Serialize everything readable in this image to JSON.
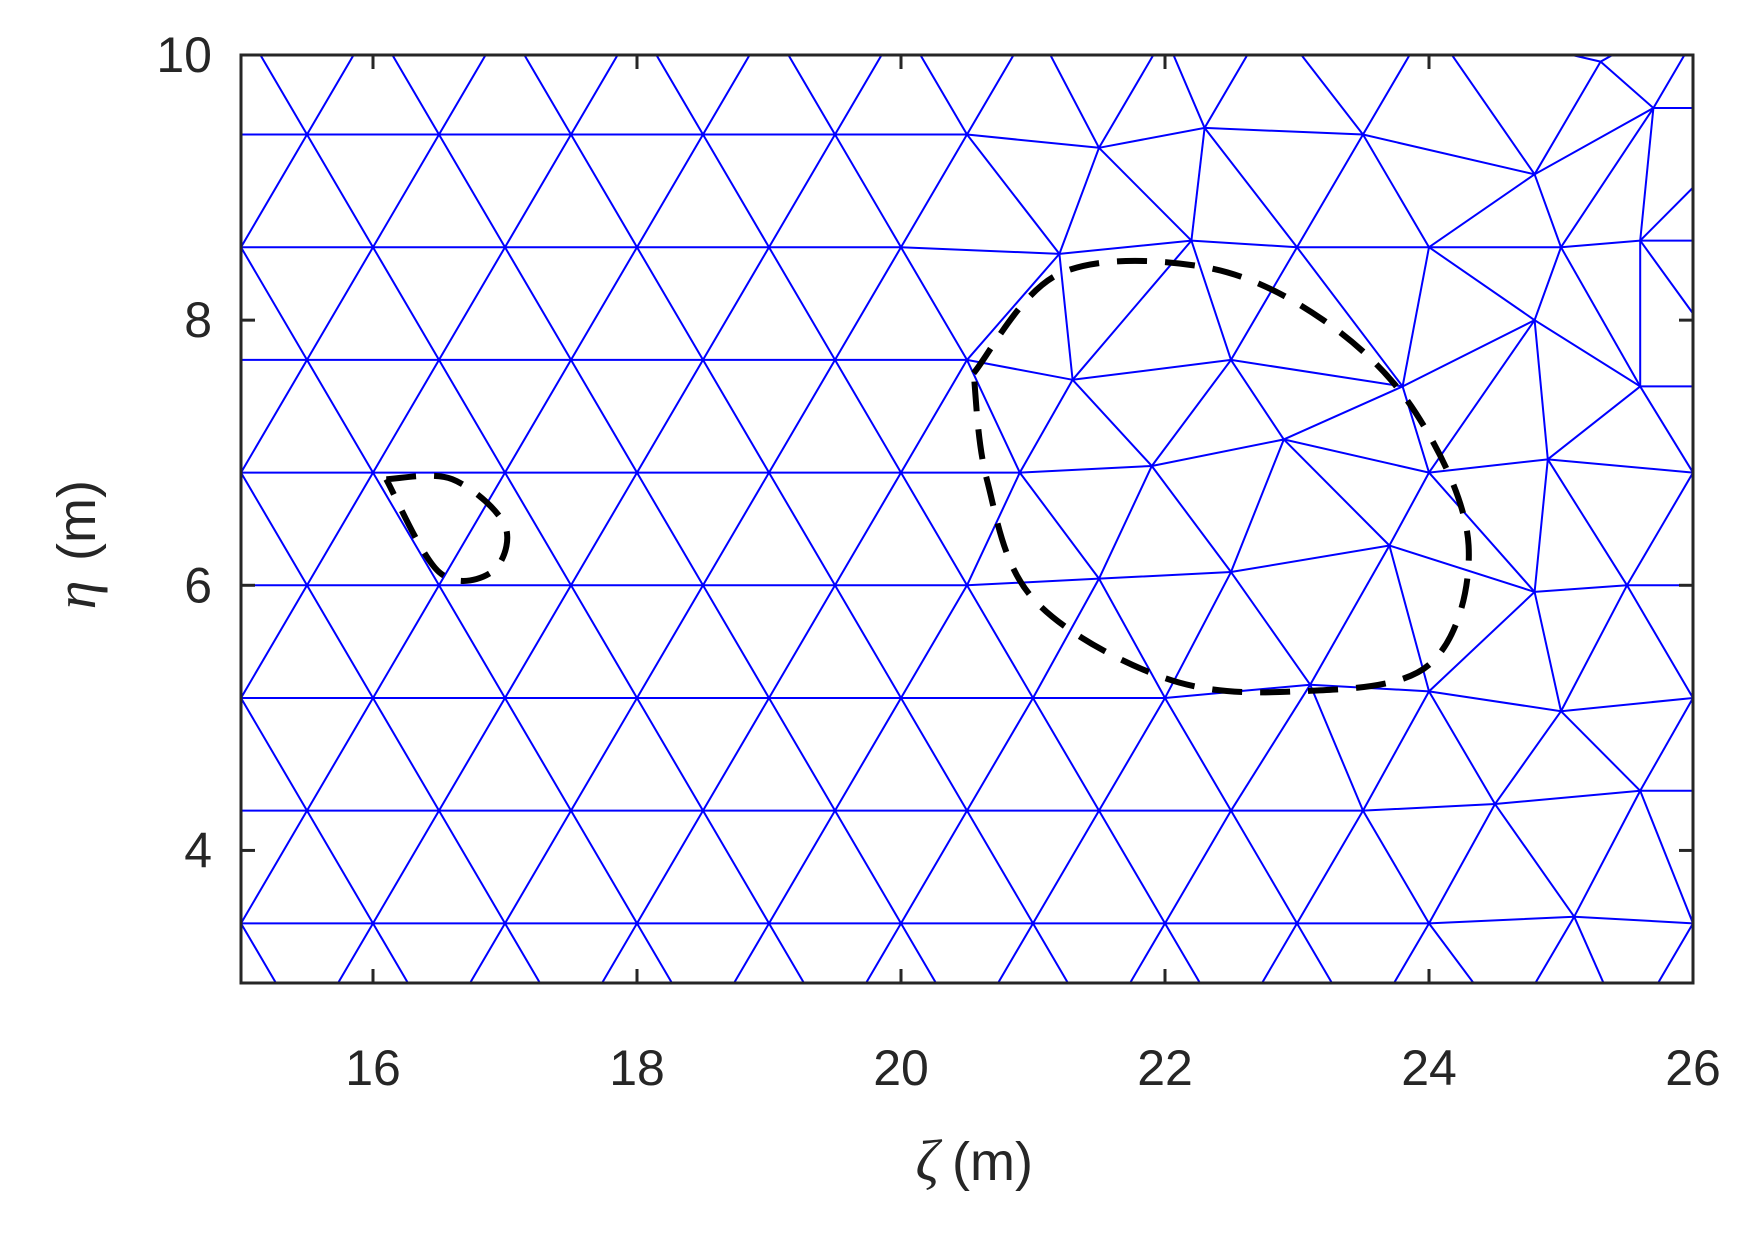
{
  "chart_data": {
    "type": "line",
    "title": "",
    "xlabel": {
      "symbol": "ζ",
      "unit": "(m)"
    },
    "ylabel": {
      "symbol": "η",
      "unit": "(m)"
    },
    "xlim": [
      15,
      26
    ],
    "ylim": [
      3,
      10
    ],
    "xticks": [
      16,
      18,
      20,
      22,
      24,
      26
    ],
    "yticks": [
      4,
      6,
      8,
      10
    ],
    "grid": false,
    "legend": "none",
    "mesh_color": "#0000ff",
    "boundary_color": "#000000",
    "series": [
      {
        "type": "mesh",
        "rows": [
          {
            "y": 3.45,
            "x0": 16.0,
            "dx": 1.0,
            "n": 11
          },
          {
            "y": 4.3,
            "x0": 15.5,
            "dx": 1.0,
            "n": 11
          },
          {
            "y": 5.15,
            "x0": 16.0,
            "dx": 1.0,
            "n": 11
          },
          {
            "y": 6.0,
            "x0": 15.5,
            "dx": 1.0,
            "n": 11
          },
          {
            "y": 6.85,
            "x0": 16.0,
            "dx": 1.0,
            "n": 11
          },
          {
            "y": 7.7,
            "x0": 15.5,
            "dx": 1.0,
            "n": 11
          },
          {
            "y": 8.55,
            "x0": 16.0,
            "dx": 1.0,
            "n": 11
          },
          {
            "y": 9.4,
            "x0": 15.5,
            "dx": 1.0,
            "n": 11
          }
        ],
        "distorted_nodes": [
          [
            21.2,
            8.5
          ],
          [
            22.2,
            8.6
          ],
          [
            23.0,
            8.05
          ],
          [
            23.8,
            7.5
          ],
          [
            21.8,
            7.8
          ],
          [
            21.3,
            7.55
          ],
          [
            22.9,
            7.1
          ],
          [
            23.7,
            6.3
          ],
          [
            22.5,
            6.1
          ],
          [
            21.5,
            6.05
          ],
          [
            21.9,
            6.9
          ],
          [
            20.9,
            6.85
          ],
          [
            20.5,
            7.7
          ],
          [
            23.1,
            5.25
          ],
          [
            24.0,
            5.2
          ],
          [
            25.0,
            5.05
          ],
          [
            24.5,
            4.35
          ],
          [
            25.6,
            4.45
          ],
          [
            24.8,
            5.95
          ],
          [
            24.9,
            6.95
          ],
          [
            24.8,
            8.0
          ],
          [
            24.8,
            9.1
          ],
          [
            23.9,
            9.65
          ],
          [
            23.0,
            9.05
          ],
          [
            22.3,
            9.45
          ],
          [
            21.5,
            9.3
          ],
          [
            25.7,
            9.6
          ],
          [
            25.6,
            8.6
          ],
          [
            25.6,
            7.5
          ],
          [
            25.6,
            6.5
          ],
          [
            25.6,
            5.5
          ],
          [
            25.1,
            3.5
          ],
          [
            22.2,
            8.6
          ]
        ]
      },
      {
        "type": "boundary",
        "name": "",
        "x": [
          16.1,
          16.6,
          17.0,
          16.9,
          16.5,
          16.1
        ],
        "y": [
          6.8,
          6.8,
          6.45,
          6.1,
          6.1,
          6.8
        ]
      },
      {
        "type": "boundary",
        "name": "",
        "x": [
          20.55,
          21.2,
          22.3,
          23.2,
          23.9,
          24.3,
          24.0,
          23.0,
          22.0,
          21.0,
          20.65,
          20.55
        ],
        "y": [
          7.6,
          8.35,
          8.4,
          8.0,
          7.3,
          6.3,
          5.4,
          5.2,
          5.3,
          5.9,
          6.8,
          7.6
        ]
      }
    ]
  }
}
